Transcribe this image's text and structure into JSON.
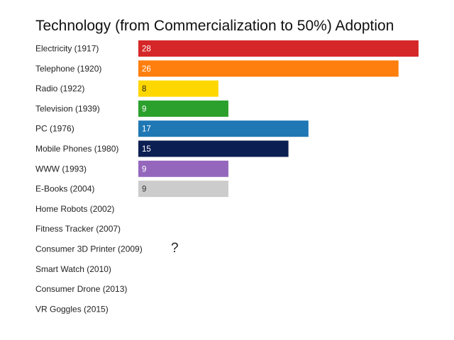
{
  "chart_data": {
    "type": "bar",
    "orientation": "horizontal",
    "title": "Technology (from Commercialization to 50%) Adoption",
    "xlabel": "",
    "ylabel": "",
    "xlim": [
      0,
      28
    ],
    "grid": false,
    "legend": "none",
    "categories": [
      "Electricity (1917)",
      "Telephone (1920)",
      "Radio (1922)",
      "Television (1939)",
      "PC (1976)",
      "Mobile Phones (1980)",
      "WWW (1993)",
      "E-Books (2004)",
      "Home Robots (2002)",
      "Fitness Tracker (2007)",
      "Consumer 3D Printer (2009)",
      "Smart Watch (2010)",
      "Consumer Drone (2013)",
      "VR Goggles (2015)"
    ],
    "values": [
      28,
      26,
      8,
      9,
      17,
      15,
      9,
      9,
      null,
      null,
      null,
      null,
      null,
      null
    ],
    "colors": [
      "#d62728",
      "#ff7f0e",
      "#ffd700",
      "#2ca02c",
      "#1f77b4",
      "#0b1f52",
      "#9467bd",
      "#cccccc"
    ],
    "label_colors": [
      "#ffffff",
      "#ffffff",
      "#222222",
      "#ffffff",
      "#ffffff",
      "#ffffff",
      "#ffffff",
      "#333333"
    ],
    "annotation": "?"
  }
}
